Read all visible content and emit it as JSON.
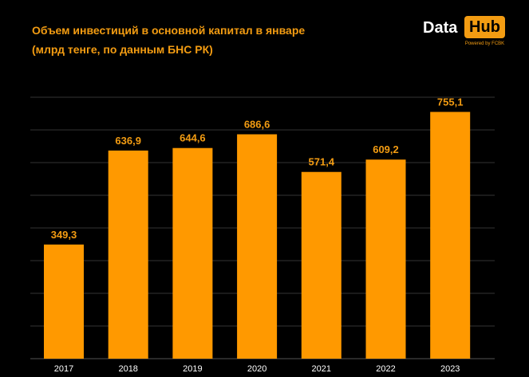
{
  "title": {
    "line1": "Объем инвестиций в основной капитал в январе",
    "line2": "(млрд тенге, по данным БНС РК)"
  },
  "logo": {
    "word1": "Data",
    "word2": "Hub",
    "tagline": "Powered by FCBK"
  },
  "colors": {
    "background": "#000000",
    "bar": "#ff9900",
    "title": "#f39c12",
    "label": "#f39c12",
    "tick": "#ffffff",
    "grid": "#333333"
  },
  "chart_data": {
    "type": "bar",
    "categories": [
      "2017",
      "2018",
      "2019",
      "2020",
      "2021",
      "2022",
      "2023"
    ],
    "values": [
      349.3,
      636.9,
      644.6,
      686.6,
      571.4,
      609.2,
      755.1
    ],
    "value_labels": [
      "349,3",
      "636,9",
      "644,6",
      "686,6",
      "571,4",
      "609,2",
      "755,1"
    ],
    "ylim": [
      0,
      800
    ],
    "grid": true,
    "legend": "none"
  }
}
